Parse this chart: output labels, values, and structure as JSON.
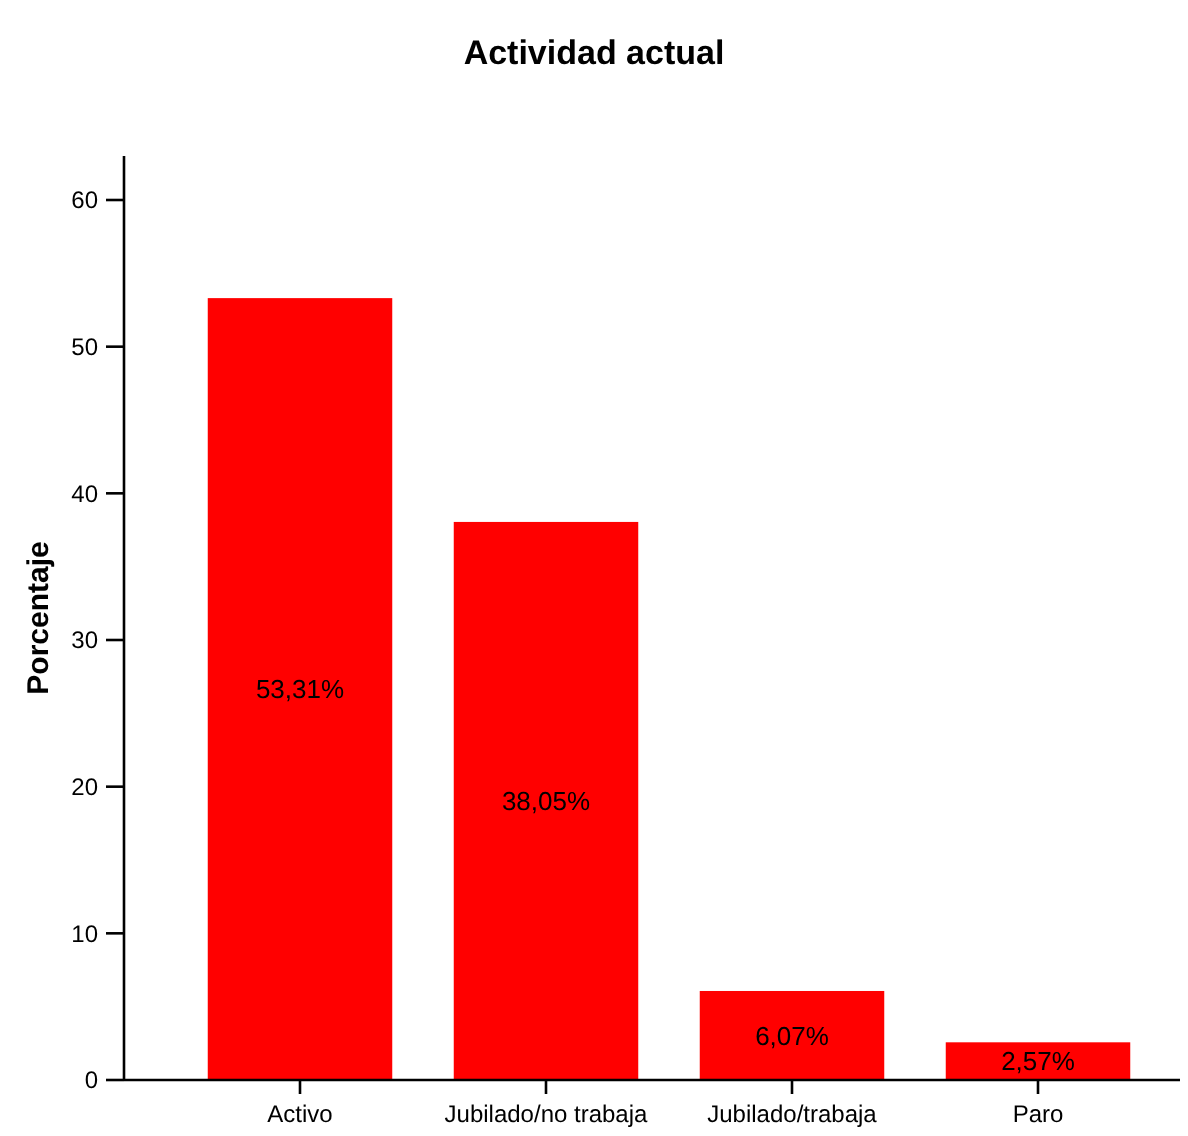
{
  "chart_data": {
    "type": "bar",
    "title": "Actividad actual",
    "ylabel": "Porcentaje",
    "categories": [
      "Activo",
      "Jubilado/no trabaja",
      "Jubilado/trabaja",
      "Paro"
    ],
    "values": [
      53.31,
      38.05,
      6.07,
      2.57
    ],
    "value_labels": [
      "53,31%",
      "38,05%",
      "6,07%",
      "2,57%"
    ],
    "color": "#ff0000",
    "ylim": [
      0,
      63
    ],
    "yticks": [
      0,
      10,
      20,
      30,
      40,
      50,
      60
    ],
    "grid": false
  }
}
